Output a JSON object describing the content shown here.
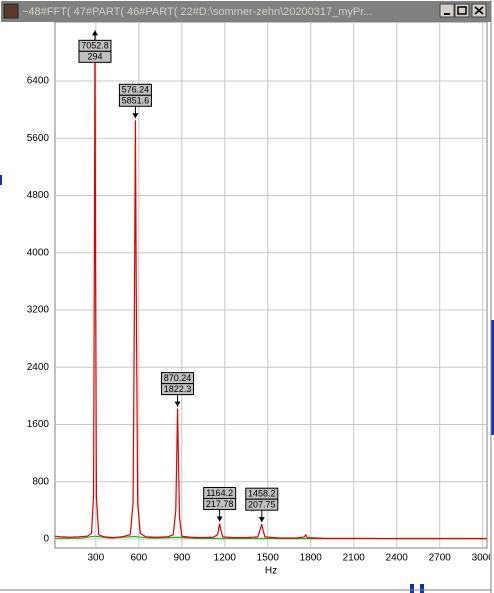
{
  "window": {
    "title": "~48#FFT( 47#PART( 46#PART( 22#D:\\sommer-zehn\\20200317_myPr..."
  },
  "chart_data": {
    "type": "line",
    "x_label": "Hz",
    "xlim": [
      15,
      3030
    ],
    "xticks": [
      300,
      600,
      900,
      1200,
      1500,
      1800,
      2100,
      2400,
      2700,
      3000
    ],
    "ylim": [
      -125,
      7225
    ],
    "yticks": [
      0,
      800,
      1600,
      2400,
      3200,
      4000,
      4800,
      5600,
      6400
    ],
    "grid": true,
    "series": [
      {
        "color": "#e00000",
        "x": [
          15,
          60,
          120,
          180,
          240,
          270,
          284,
          290,
          294,
          298,
          304,
          320,
          360,
          420,
          480,
          540,
          560,
          570,
          576.24,
          582,
          592,
          610,
          650,
          720,
          800,
          840,
          858,
          866,
          870.24,
          875,
          884,
          900,
          960,
          1040,
          1120,
          1150,
          1160,
          1164.2,
          1170,
          1185,
          1260,
          1350,
          1430,
          1450,
          1458.2,
          1465,
          1480,
          1580,
          1700,
          1755,
          1765,
          1775,
          1900,
          2100,
          2400,
          2700,
          3030
        ],
        "values": [
          40,
          30,
          25,
          30,
          40,
          80,
          600,
          4000,
          7052.8,
          4000,
          600,
          60,
          30,
          20,
          30,
          60,
          500,
          3500,
          5851.6,
          3500,
          500,
          80,
          30,
          25,
          30,
          60,
          400,
          1300,
          1822.3,
          1300,
          300,
          40,
          25,
          20,
          25,
          60,
          170,
          217.78,
          150,
          30,
          20,
          20,
          30,
          150,
          207.75,
          140,
          30,
          15,
          15,
          30,
          60,
          20,
          10,
          10,
          8,
          8,
          8
        ]
      },
      {
        "color": "#20b020",
        "x": [
          15,
          200,
          290,
          400,
          570,
          700,
          870,
          1000,
          1200,
          1500,
          1800,
          2100,
          2400,
          2700,
          3030
        ],
        "values": [
          10,
          12,
          40,
          15,
          35,
          12,
          25,
          10,
          8,
          8,
          6,
          5,
          5,
          5,
          5
        ]
      }
    ],
    "annotations": [
      {
        "y": 7052.8,
        "x": 294
      },
      {
        "x": 576.24,
        "y": 5851.6
      },
      {
        "x": 870.24,
        "y": 1822.3
      },
      {
        "x": 1164.2,
        "y": 217.78
      },
      {
        "x": 1458.2,
        "y": 207.75
      }
    ]
  }
}
